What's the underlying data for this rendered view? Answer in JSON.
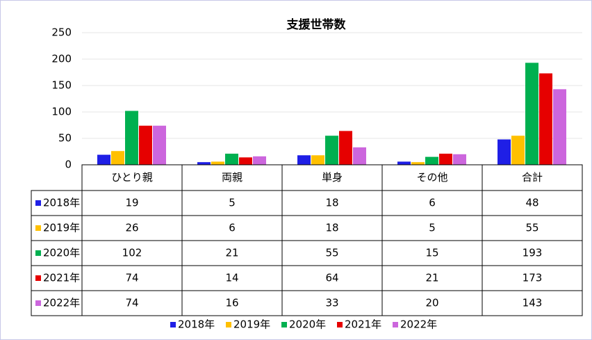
{
  "chart_data": {
    "type": "bar",
    "title": "支援世帯数",
    "categories": [
      "ひとり親",
      "両親",
      "単身",
      "その他",
      "合計"
    ],
    "series": [
      {
        "name": "2018年",
        "color": "#1f1fe6",
        "values": [
          19,
          5,
          18,
          6,
          48
        ]
      },
      {
        "name": "2019年",
        "color": "#ffc000",
        "values": [
          26,
          6,
          18,
          5,
          55
        ]
      },
      {
        "name": "2020年",
        "color": "#00b050",
        "values": [
          102,
          21,
          55,
          15,
          193
        ]
      },
      {
        "name": "2021年",
        "color": "#e60000",
        "values": [
          74,
          14,
          64,
          21,
          173
        ]
      },
      {
        "name": "2022年",
        "color": "#cc66dd",
        "values": [
          74,
          16,
          33,
          20,
          143
        ]
      }
    ],
    "ylim": [
      0,
      250
    ],
    "yticks": [
      0,
      50,
      100,
      150,
      200,
      250
    ],
    "grid": true,
    "legend": "bottom"
  }
}
